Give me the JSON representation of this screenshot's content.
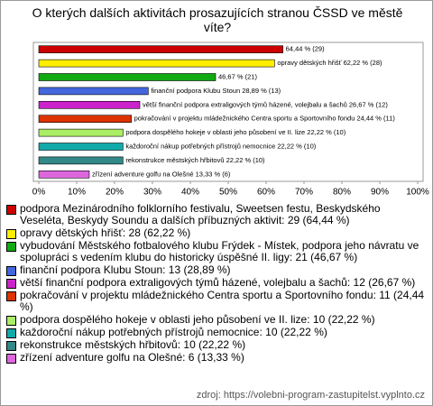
{
  "chart_data": {
    "type": "bar",
    "orientation": "horizontal",
    "title": "O kterých dalších aktivitách prosazujících stranou ČSSD ve městě víte?",
    "categories": [
      "podpora Mezinárodního folklorního festivalu, Sweetsen festu, Beskydského Veseléta, Beskydy Soundu a dalších příbuzných aktivit: 29 (64,44 %)",
      "opravy dětských hřišť: 28 (62,22 %)",
      "vybudování Městského fotbalového klubu Frýdek - Místek, podpora jeho návratu ve spolupráci s vedením klubu do historicky úspěšné II. ligy: 21 (46,67 %)",
      "finanční podpora Klubu Stoun: 13 (28,89 %)",
      "větší finanční podpora extraligových týmů házené, volejbalu a šachů: 12 (26,67 %)",
      "pokračování v projektu mládežnického Centra sportu a Sportovního fondu: 11 (24,44 %)",
      "podpora dospělého hokeje v oblasti jeho působení ve II. lize: 10 (22,22 %)",
      "každoroční nákup potřebných přístrojů nemocnice: 10 (22,22 %)",
      "rekonstrukce městských hřbitovů: 10 (22,22 %)",
      "zřízení adventure golfu na Olešné: 6 (13,33 %)"
    ],
    "values": [
      64.44,
      62.22,
      46.67,
      28.89,
      26.67,
      24.44,
      22.22,
      22.22,
      22.22,
      13.33
    ],
    "value_labels": [
      "64,44 % (29)",
      "opravy dětských hřišť 62,22 % (28)",
      "46,67 % (21)",
      "finanční podpora Klubu Stoun 28,89 % (13)",
      "větší finanční podpora extraligových týmů házené, volejbalu a šachů 26,67 % (12)",
      "pokračování v projektu mládežnického Centra sportu a Sportovního fondu 24,44 % (11)",
      "podpora dospělého hokeje v oblasti jeho působení ve II. lize 22,22 % (10)",
      "každoroční nákup potřebných přístrojů nemocnice 22,22 % (10)",
      "rekonstrukce městských hřbitovů 22,22 % (10)",
      "zřízení adventure golfu na Olešné 13,33 % (6)"
    ],
    "colors": [
      "#cc0000",
      "#ffee00",
      "#11aa11",
      "#4466dd",
      "#cc22cc",
      "#dd3300",
      "#aaee66",
      "#11aaaa",
      "#338888",
      "#dd66dd"
    ],
    "xlim": [
      0,
      100
    ],
    "xticks": [
      {
        "value": 0,
        "label": "0%"
      },
      {
        "value": 10,
        "label": "10%"
      },
      {
        "value": 20,
        "label": "20%"
      },
      {
        "value": 30,
        "label": "30%"
      },
      {
        "value": 40,
        "label": "40%"
      },
      {
        "value": 50,
        "label": "50%"
      },
      {
        "value": 60,
        "label": "60%"
      },
      {
        "value": 70,
        "label": "70%"
      },
      {
        "value": 80,
        "label": "80%"
      },
      {
        "value": 90,
        "label": "90%"
      },
      {
        "value": 100,
        "label": "100%"
      }
    ],
    "grid": false,
    "source": "zdroj: https://volebni-program-zastupitelst.vyplnto.cz"
  }
}
